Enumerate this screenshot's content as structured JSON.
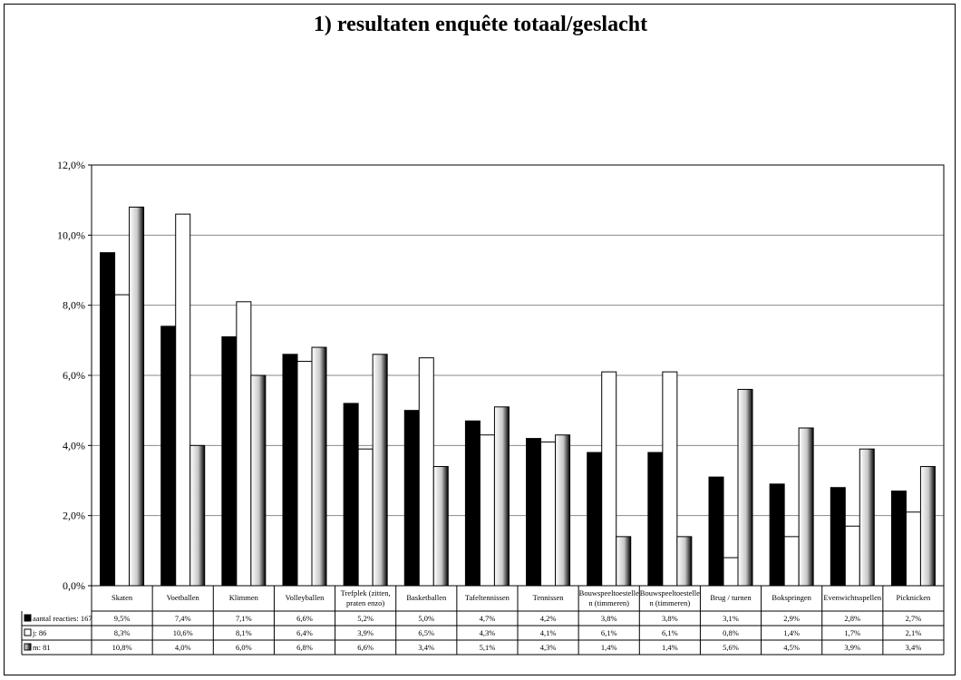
{
  "chart_data": {
    "type": "bar",
    "title": "1) resultaten enquête totaal/geslacht",
    "ylim": [
      0,
      12
    ],
    "yticks": [
      "0,0%",
      "2,0%",
      "4,0%",
      "6,0%",
      "8,0%",
      "10,0%",
      "12,0%"
    ],
    "grid": true,
    "categories": [
      [
        "Skaten"
      ],
      [
        "Voetballen"
      ],
      [
        "Klimmen"
      ],
      [
        "Volleyballen"
      ],
      [
        "Trefplek (zitten,",
        "praten enzo)"
      ],
      [
        "Basketballen"
      ],
      [
        "Tafeltennissen"
      ],
      [
        "Tennissen"
      ],
      [
        "Bouwspeeltoestelle",
        "n (timmeren)"
      ],
      [
        "Bouwspeeltoestelle",
        "n (timmeren)"
      ],
      [
        "Brug / turnen"
      ],
      [
        "Bokspringen"
      ],
      [
        "Evenwichtsspellen"
      ],
      [
        "Picknicken"
      ]
    ],
    "series": [
      {
        "name": "aantal reacties: 167",
        "fill": "#000000",
        "values": [
          9.5,
          7.4,
          7.1,
          6.6,
          5.2,
          5.0,
          4.7,
          4.2,
          3.8,
          3.8,
          3.1,
          2.9,
          2.8,
          2.7
        ],
        "labels": [
          "9,5%",
          "7,4%",
          "7,1%",
          "6,6%",
          "5,2%",
          "5,0%",
          "4,7%",
          "4,2%",
          "3,8%",
          "3,8%",
          "3,1%",
          "2,9%",
          "2,8%",
          "2,7%"
        ]
      },
      {
        "name": "j: 86",
        "fill": "#ffffff",
        "values": [
          8.3,
          10.6,
          8.1,
          6.4,
          3.9,
          6.5,
          4.3,
          4.1,
          6.1,
          6.1,
          0.8,
          1.4,
          1.7,
          2.1
        ],
        "labels": [
          "8,3%",
          "10,6%",
          "8,1%",
          "6,4%",
          "3,9%",
          "6,5%",
          "4,3%",
          "4,1%",
          "6,1%",
          "6,1%",
          "0,8%",
          "1,4%",
          "1,7%",
          "2,1%"
        ]
      },
      {
        "name": "m: 81",
        "fill": "gradient",
        "values": [
          10.8,
          4.0,
          6.0,
          6.8,
          6.6,
          3.4,
          5.1,
          4.3,
          1.4,
          1.4,
          5.6,
          4.5,
          3.9,
          3.4
        ],
        "labels": [
          "10,8%",
          "4,0%",
          "6,0%",
          "6,8%",
          "6,6%",
          "3,4%",
          "5,1%",
          "4,3%",
          "1,4%",
          "1,4%",
          "5,6%",
          "4,5%",
          "3,9%",
          "3,4%"
        ]
      }
    ]
  }
}
